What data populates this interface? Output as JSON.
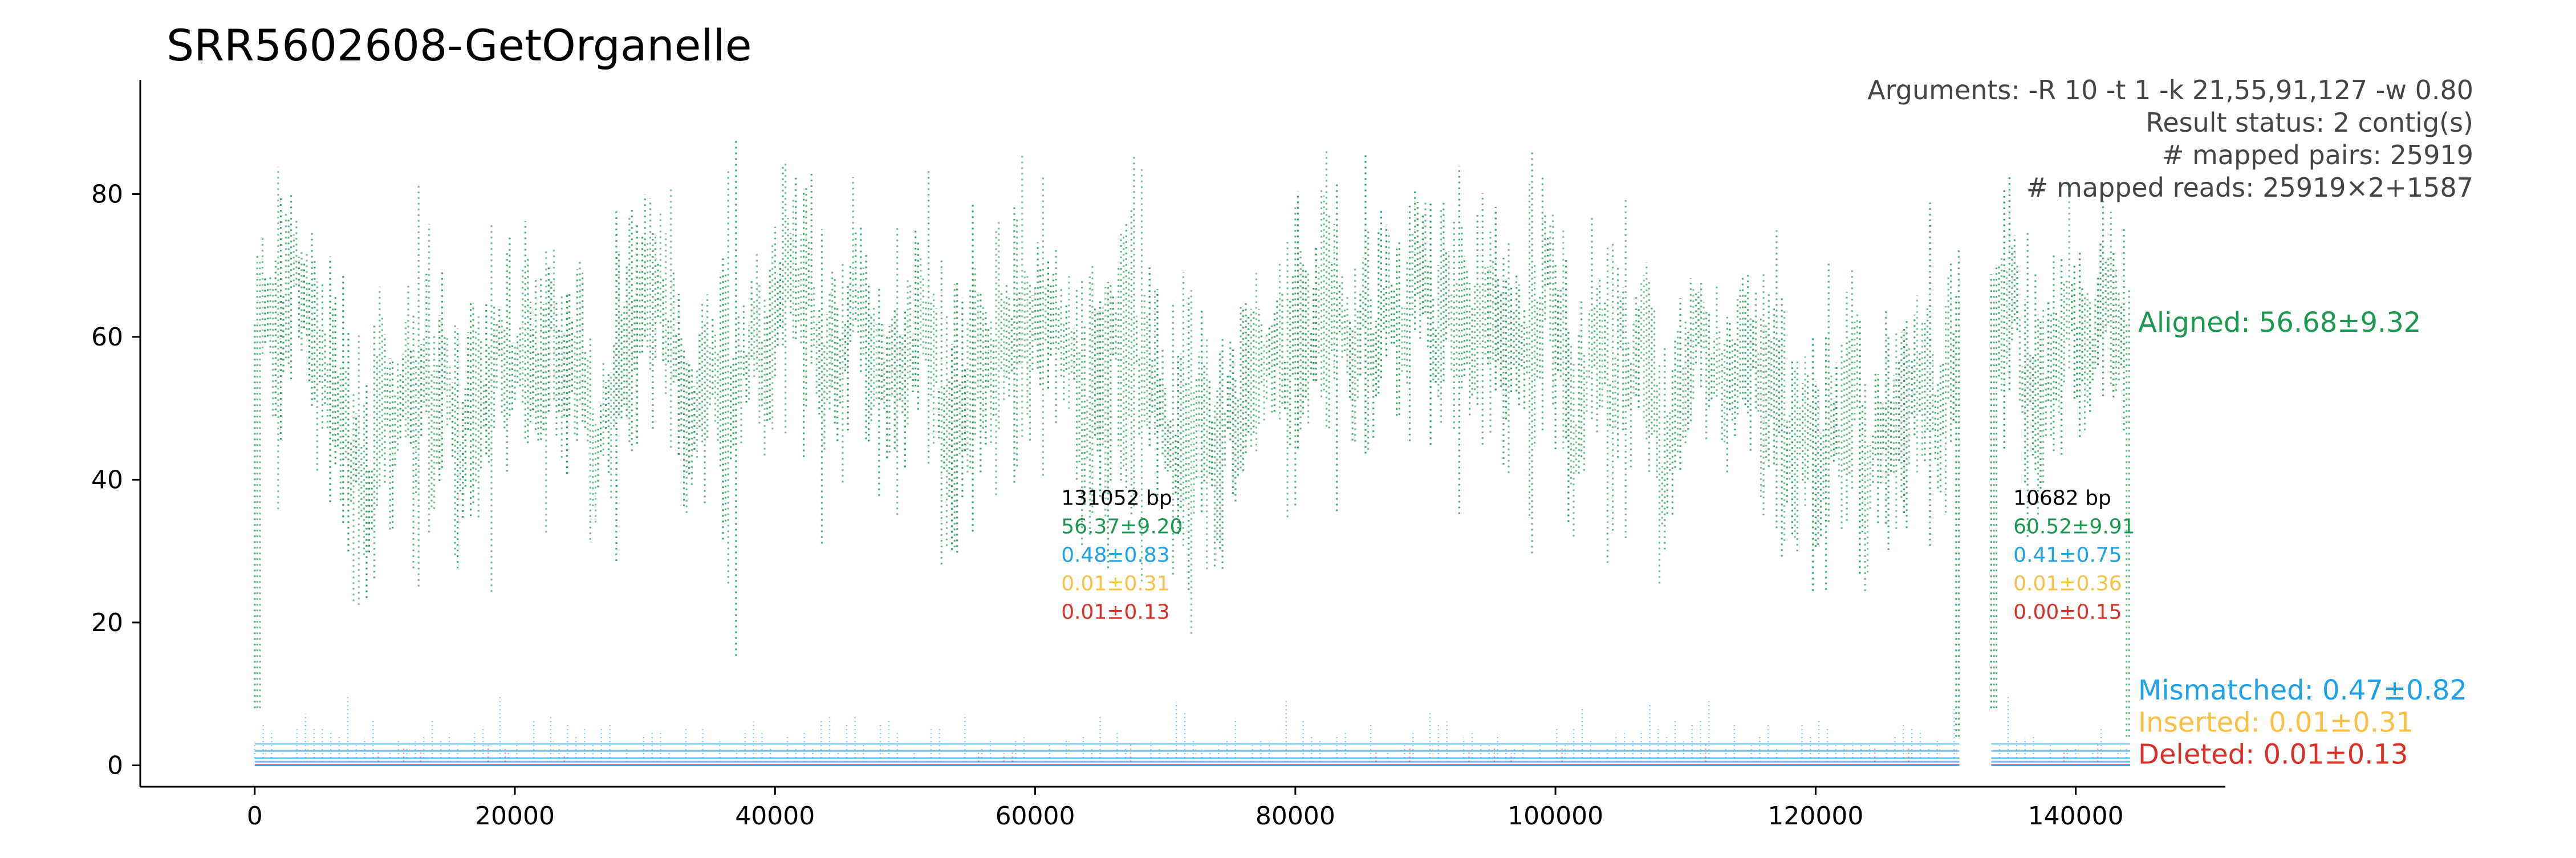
{
  "chart_data": {
    "type": "scatter",
    "title": "SRR5602608-GetOrganelle",
    "xlabel": "",
    "ylabel": "",
    "xlim": [
      -8800,
      151500
    ],
    "ylim": [
      -3,
      96
    ],
    "x_ticks": [
      0,
      20000,
      40000,
      60000,
      80000,
      100000,
      120000,
      140000
    ],
    "x_tick_labels": [
      "0",
      "20000",
      "40000",
      "60000",
      "80000",
      "100000",
      "120000",
      "140000"
    ],
    "y_ticks": [
      0,
      20,
      40,
      60,
      80
    ],
    "y_tick_labels": [
      "0",
      "20",
      "40",
      "60",
      "80"
    ],
    "grid": false,
    "info_lines": [
      "Arguments: -R 10 -t 1 -k 21,55,91,127 -w 0.80",
      "Result status: 2 contig(s)",
      "# mapped pairs: 25919",
      "# mapped reads: 25919×2+1587"
    ],
    "contigs": [
      {
        "start": 0,
        "end": 131052,
        "label_x": 62000,
        "length_label": "131052 bp",
        "stats": {
          "aligned": "56.37±9.20",
          "mismatched": "0.48±0.83",
          "inserted": "0.01±0.31",
          "deleted": "0.01±0.13"
        }
      },
      {
        "start": 133500,
        "end": 144182,
        "label_x": 135200,
        "length_label": "10682 bp",
        "stats": {
          "aligned": "60.52±9.91",
          "mismatched": "0.41±0.75",
          "inserted": "0.01±0.36",
          "deleted": "0.00±0.15"
        }
      }
    ],
    "series": [
      {
        "name": "Aligned",
        "label": "Aligned: 56.68±9.32",
        "color": "#1a9850",
        "profile_x": [
          0,
          2000,
          5000,
          8000,
          10000,
          14000,
          18000,
          22000,
          26000,
          30000,
          34000,
          36000,
          38000,
          40000,
          42000,
          45000,
          48000,
          52000,
          55000,
          60000,
          65000,
          70000,
          74000,
          76000,
          78000,
          80000,
          85000,
          90000,
          95000,
          100000,
          104000,
          106000,
          110000,
          115000,
          118000,
          120000,
          122000,
          125000,
          128000,
          131052,
          133500,
          137000,
          140000,
          144182
        ],
        "profile_y": [
          55,
          60,
          58,
          48,
          46,
          52,
          58,
          60,
          56,
          56,
          48,
          50,
          52,
          62,
          60,
          58,
          56,
          52,
          48,
          58,
          55,
          52,
          50,
          48,
          60,
          56,
          56,
          54,
          58,
          60,
          56,
          56,
          55,
          58,
          52,
          48,
          46,
          50,
          56,
          58,
          60,
          58,
          62,
          60
        ],
        "spread": 9.3,
        "label_y": 62
      },
      {
        "name": "Mismatched",
        "label": "Mismatched: 0.47±0.82",
        "color": "#1ea1e6",
        "level": 0.47,
        "spread": 0.82,
        "label_y": 10.5
      },
      {
        "name": "Inserted",
        "label": "Inserted: 0.01±0.31",
        "color": "#f8c046",
        "level": 0.01,
        "spread": 0.31,
        "label_y": 6
      },
      {
        "name": "Deleted",
        "label": "Deleted: 0.01±0.13",
        "color": "#d73027",
        "level": 0.01,
        "spread": 0.13,
        "label_y": 1.5
      }
    ]
  }
}
